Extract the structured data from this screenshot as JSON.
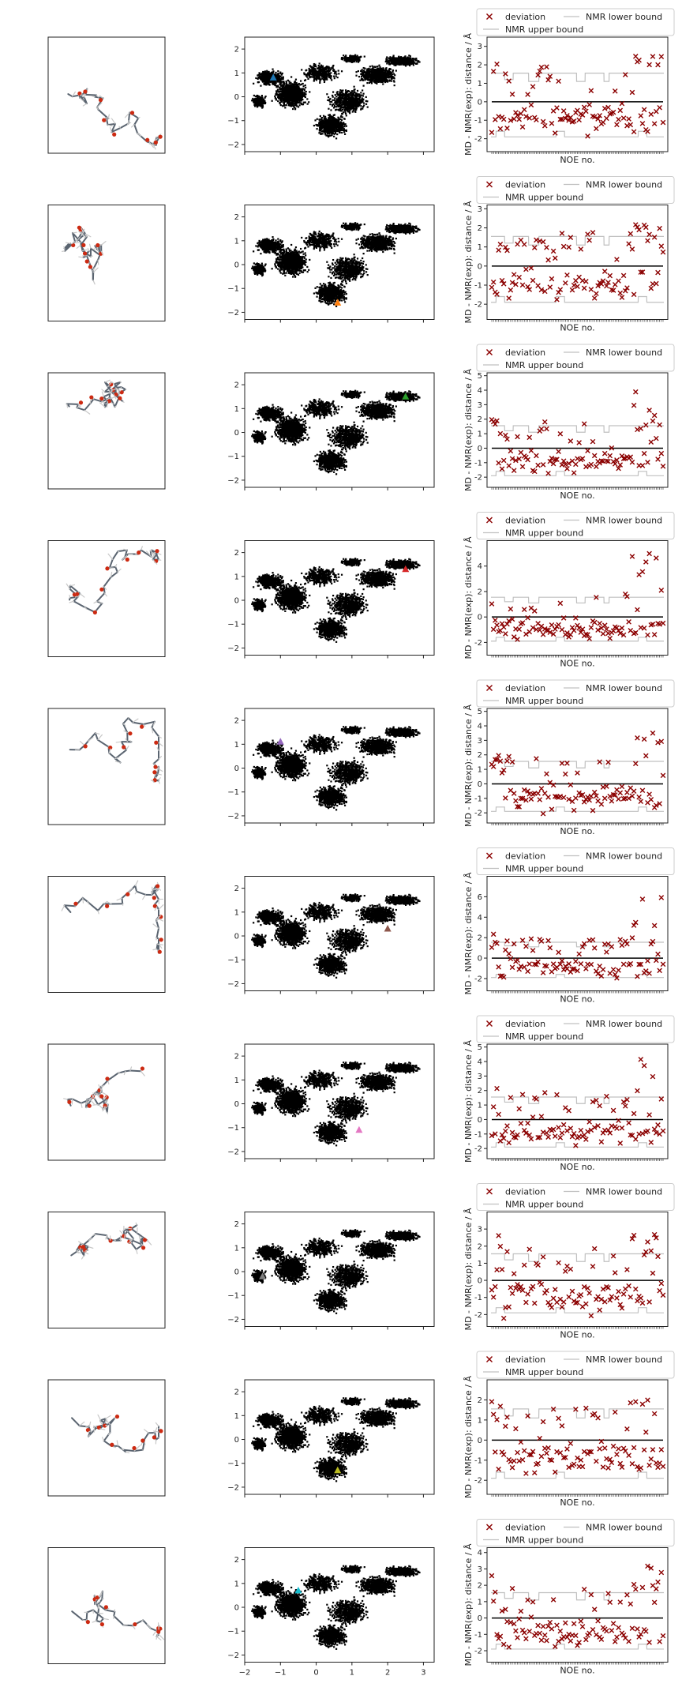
{
  "chart_data": {
    "type": "multi-panel",
    "rows": 10,
    "noe_count": 101,
    "pca_axes": {
      "xlim": [
        -2,
        3.3
      ],
      "ylim": [
        -2.3,
        2.5
      ],
      "xticks": [
        "−2",
        "−1",
        "0",
        "1",
        "2",
        "3"
      ],
      "yticks": [
        "−2",
        "−1",
        "0",
        "1",
        "2"
      ]
    },
    "deviation_axes": {
      "ylabel": "MD - NMR(exp): distance / Å",
      "xlabel": "NOE no."
    },
    "legend": {
      "deviation": "deviation",
      "upper": "NMR upper bound",
      "lower": "NMR lower bound"
    },
    "series_colors": {
      "deviation": "#8b0000",
      "bounds": "#c0c0c0",
      "zero": "#000000",
      "scatter": "#000000"
    },
    "panels": [
      {
        "marker": {
          "x": -1.2,
          "y": 0.8,
          "color": "#1f77b4"
        },
        "ylim": [
          -2.7,
          3.5
        ],
        "yticks": [
          -2,
          -1,
          0,
          1,
          2,
          3
        ],
        "seed": 11
      },
      {
        "marker": {
          "x": 0.6,
          "y": -1.6,
          "color": "#ff7f0e"
        },
        "ylim": [
          -2.8,
          3.2
        ],
        "yticks": [
          -2,
          -1,
          0,
          1,
          2,
          3
        ],
        "seed": 23
      },
      {
        "marker": {
          "x": 2.5,
          "y": 1.5,
          "color": "#2ca02c"
        },
        "ylim": [
          -2.7,
          5.2
        ],
        "yticks": [
          -2,
          -1,
          0,
          1,
          2,
          3,
          4,
          5
        ],
        "seed": 37
      },
      {
        "marker": {
          "x": 2.5,
          "y": 1.3,
          "color": "#d62728"
        },
        "ylim": [
          -3.0,
          6.0
        ],
        "yticks": [
          -2,
          0,
          2,
          4
        ],
        "seed": 41
      },
      {
        "marker": {
          "x": -1.0,
          "y": 1.1,
          "color": "#9467bd"
        },
        "ylim": [
          -2.7,
          5.2
        ],
        "yticks": [
          -2,
          -1,
          0,
          1,
          2,
          3,
          4,
          5
        ],
        "seed": 53
      },
      {
        "marker": {
          "x": 2.0,
          "y": 0.3,
          "color": "#8c564b"
        },
        "ylim": [
          -3.2,
          8.0
        ],
        "yticks": [
          -2,
          0,
          2,
          4,
          6
        ],
        "seed": 67
      },
      {
        "marker": {
          "x": 1.2,
          "y": -1.1,
          "color": "#e377c2"
        },
        "ylim": [
          -2.7,
          5.2
        ],
        "yticks": [
          -2,
          -1,
          0,
          1,
          2,
          3,
          4,
          5
        ],
        "seed": 71
      },
      {
        "marker": {
          "x": -1.5,
          "y": -0.2,
          "color": "#7f7f7f"
        },
        "ylim": [
          -2.7,
          4.0
        ],
        "yticks": [
          -2,
          -1,
          0,
          1,
          2,
          3
        ],
        "seed": 83
      },
      {
        "marker": {
          "x": 0.6,
          "y": -1.3,
          "color": "#bcbd22"
        },
        "ylim": [
          -2.7,
          3.0
        ],
        "yticks": [
          -2,
          -1,
          0,
          1,
          2
        ],
        "seed": 97
      },
      {
        "marker": {
          "x": -0.5,
          "y": 0.7,
          "color": "#17becf"
        },
        "ylim": [
          -2.7,
          4.3
        ],
        "yticks": [
          -2,
          -1,
          0,
          1,
          2,
          3,
          4
        ],
        "seed": 101
      }
    ]
  }
}
